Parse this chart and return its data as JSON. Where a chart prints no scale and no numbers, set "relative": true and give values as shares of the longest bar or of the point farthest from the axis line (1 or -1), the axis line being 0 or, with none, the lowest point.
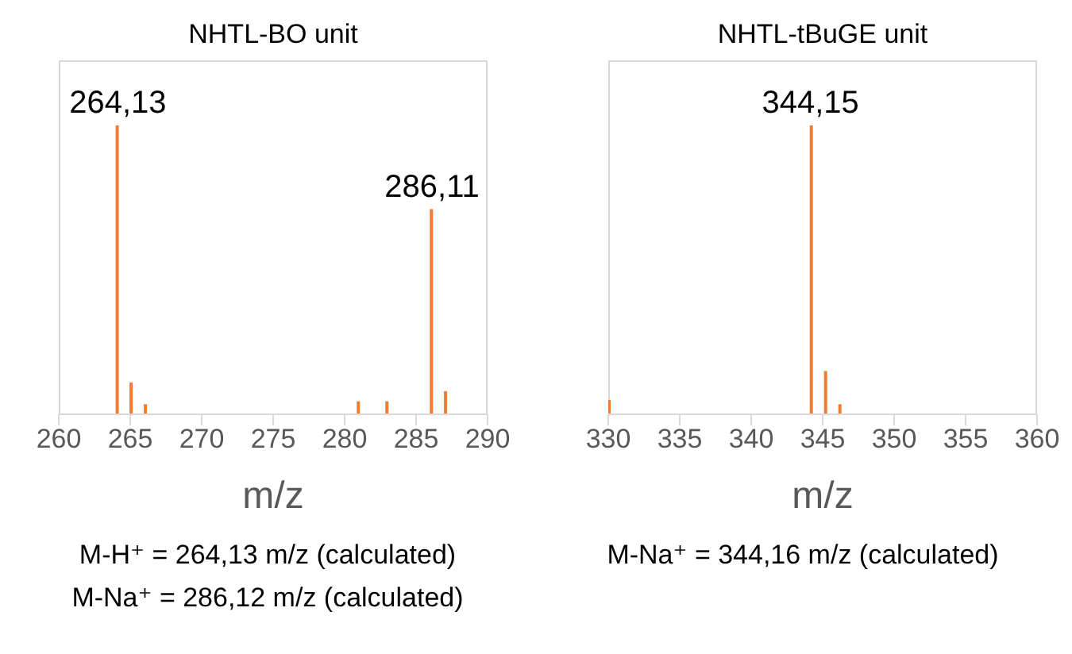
{
  "chart_data": [
    {
      "type": "bar",
      "title": "NHTL-BO unit",
      "xlabel": "m/z",
      "relative": true,
      "grid": false,
      "x": [
        264.13,
        265.1,
        266.1,
        281,
        283,
        286.11,
        287.1
      ],
      "series": [
        {
          "color": "#ed7d31",
          "values": [
            1,
            0.11,
            0.035,
            0.045,
            0.045,
            0.71,
            0.08
          ]
        }
      ],
      "xlim": [
        260,
        290
      ],
      "xticks": [
        260,
        265,
        270,
        275,
        280,
        285,
        290
      ],
      "annotations": [
        {
          "text": "264,13",
          "x": 264.13,
          "y": 1
        },
        {
          "text": "286,11",
          "x": 286.11,
          "y": 0.71
        },
        "M-H⁺ = 264,13 m/z (calculated)",
        "M-Na⁺ = 286,12 m/z (calculated)"
      ]
    },
    {
      "type": "bar",
      "title": "NHTL-tBuGE unit",
      "xlabel": "m/z",
      "relative": true,
      "grid": false,
      "x": [
        330,
        344.15,
        345.15,
        346.15
      ],
      "series": [
        {
          "color": "#ed7d31",
          "values": [
            0.05,
            1,
            0.15,
            0.035
          ]
        }
      ],
      "xlim": [
        330,
        360
      ],
      "xticks": [
        330,
        335,
        340,
        345,
        350,
        355,
        360
      ],
      "annotations": [
        {
          "text": "344,15",
          "x": 344.15,
          "y": 1
        },
        "M-Na⁺ = 344,16 m/z (calculated)"
      ]
    }
  ]
}
